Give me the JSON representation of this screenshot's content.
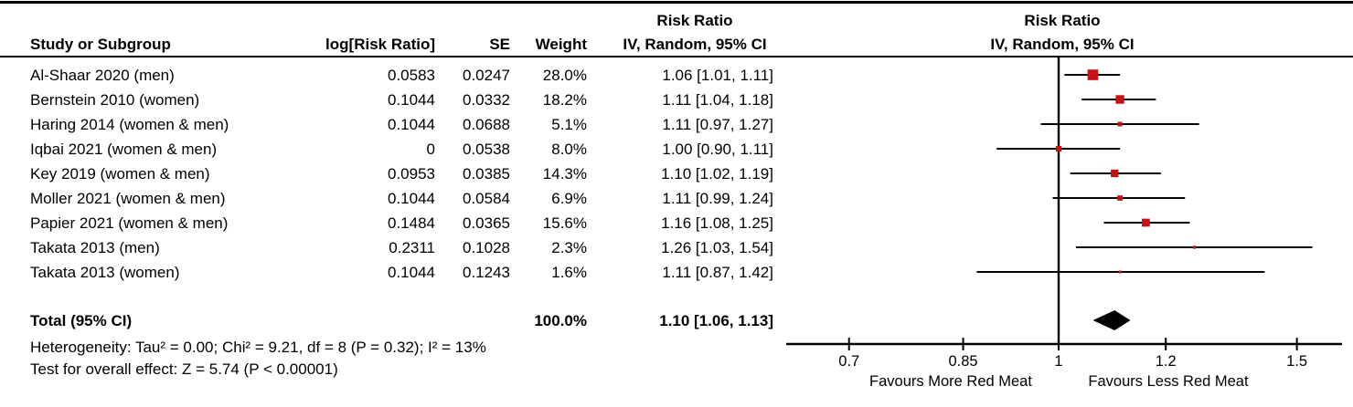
{
  "colors": {
    "marker": "#C41216",
    "diamond": "#000000",
    "line": "#000000",
    "text": "#000000",
    "background": "#ffffff"
  },
  "header": {
    "risk_ratio_label": "Risk Ratio",
    "method_label": "IV, Random, 95% CI",
    "columns": {
      "study": "Study or Subgroup",
      "log_rr": "log[Risk Ratio]",
      "se": "SE",
      "weight": "Weight"
    }
  },
  "studies": [
    {
      "name": "Al-Shaar 2020 (men)",
      "log_rr": "0.0583",
      "se": "0.0247",
      "weight": "28.0%",
      "ci_label": "1.06 [1.01, 1.11]"
    },
    {
      "name": "Bernstein 2010 (women)",
      "log_rr": "0.1044",
      "se": "0.0332",
      "weight": "18.2%",
      "ci_label": "1.11 [1.04, 1.18]"
    },
    {
      "name": "Haring 2014 (women & men)",
      "log_rr": "0.1044",
      "se": "0.0688",
      "weight": "5.1%",
      "ci_label": "1.11 [0.97, 1.27]"
    },
    {
      "name": "Iqbai 2021 (women & men)",
      "log_rr": "0",
      "se": "0.0538",
      "weight": "8.0%",
      "ci_label": "1.00 [0.90, 1.11]"
    },
    {
      "name": "Key 2019 (women & men)",
      "log_rr": "0.0953",
      "se": "0.0385",
      "weight": "14.3%",
      "ci_label": "1.10 [1.02, 1.19]"
    },
    {
      "name": "Moller 2021 (women & men)",
      "log_rr": "0.1044",
      "se": "0.0584",
      "weight": "6.9%",
      "ci_label": "1.11 [0.99, 1.24]"
    },
    {
      "name": "Papier 2021 (women & men)",
      "log_rr": "0.1484",
      "se": "0.0365",
      "weight": "15.6%",
      "ci_label": "1.16 [1.08, 1.25]"
    },
    {
      "name": "Takata 2013 (men)",
      "log_rr": "0.2311",
      "se": "0.1028",
      "weight": "2.3%",
      "ci_label": "1.26 [1.03, 1.54]"
    },
    {
      "name": "Takata 2013 (women)",
      "log_rr": "0.1044",
      "se": "0.1243",
      "weight": "1.6%",
      "ci_label": "1.11 [0.87, 1.42]"
    }
  ],
  "total": {
    "label": "Total (95% CI)",
    "weight": "100.0%",
    "ci_label": "1.10 [1.06, 1.13]"
  },
  "footnotes": {
    "heterogeneity": "Heterogeneity: Tau² = 0.00; Chi² = 9.21, df = 8 (P = 0.32); I² = 13%",
    "overall_effect": "Test for overall effect: Z = 5.74 (P < 0.00001)"
  },
  "axis": {
    "favours_left": "Favours More Red Meat",
    "favours_right": "Favours Less Red Meat"
  },
  "chart_data": {
    "type": "scatter",
    "variant": "forest-plot",
    "title": "Risk Ratio",
    "subtitle": "IV, Random, 95% CI",
    "x_scale": "log",
    "x_ticks": [
      0.7,
      0.85,
      1,
      1.2,
      1.5
    ],
    "x_tick_labels": [
      "0.7",
      "0.85",
      "1",
      "1.2",
      "1.5"
    ],
    "null_line": 1,
    "xlabel_left": "Favours More Red Meat",
    "xlabel_right": "Favours Less Red Meat",
    "series": [
      {
        "name": "Al-Shaar 2020 (men)",
        "rr": 1.06,
        "ci": [
          1.01,
          1.11
        ],
        "weight_pct": 28.0
      },
      {
        "name": "Bernstein 2010 (women)",
        "rr": 1.11,
        "ci": [
          1.04,
          1.18
        ],
        "weight_pct": 18.2
      },
      {
        "name": "Haring 2014 (women & men)",
        "rr": 1.11,
        "ci": [
          0.97,
          1.27
        ],
        "weight_pct": 5.1
      },
      {
        "name": "Iqbai 2021 (women & men)",
        "rr": 1.0,
        "ci": [
          0.9,
          1.11
        ],
        "weight_pct": 8.0
      },
      {
        "name": "Key 2019 (women & men)",
        "rr": 1.1,
        "ci": [
          1.02,
          1.19
        ],
        "weight_pct": 14.3
      },
      {
        "name": "Moller 2021 (women & men)",
        "rr": 1.11,
        "ci": [
          0.99,
          1.24
        ],
        "weight_pct": 6.9
      },
      {
        "name": "Papier 2021 (women & men)",
        "rr": 1.16,
        "ci": [
          1.08,
          1.25
        ],
        "weight_pct": 15.6
      },
      {
        "name": "Takata 2013 (men)",
        "rr": 1.26,
        "ci": [
          1.03,
          1.54
        ],
        "weight_pct": 2.3
      },
      {
        "name": "Takata 2013 (women)",
        "rr": 1.11,
        "ci": [
          0.87,
          1.42
        ],
        "weight_pct": 1.6
      }
    ],
    "summary": {
      "name": "Total (95% CI)",
      "rr": 1.1,
      "ci": [
        1.06,
        1.13
      ],
      "weight_pct": 100.0
    }
  }
}
